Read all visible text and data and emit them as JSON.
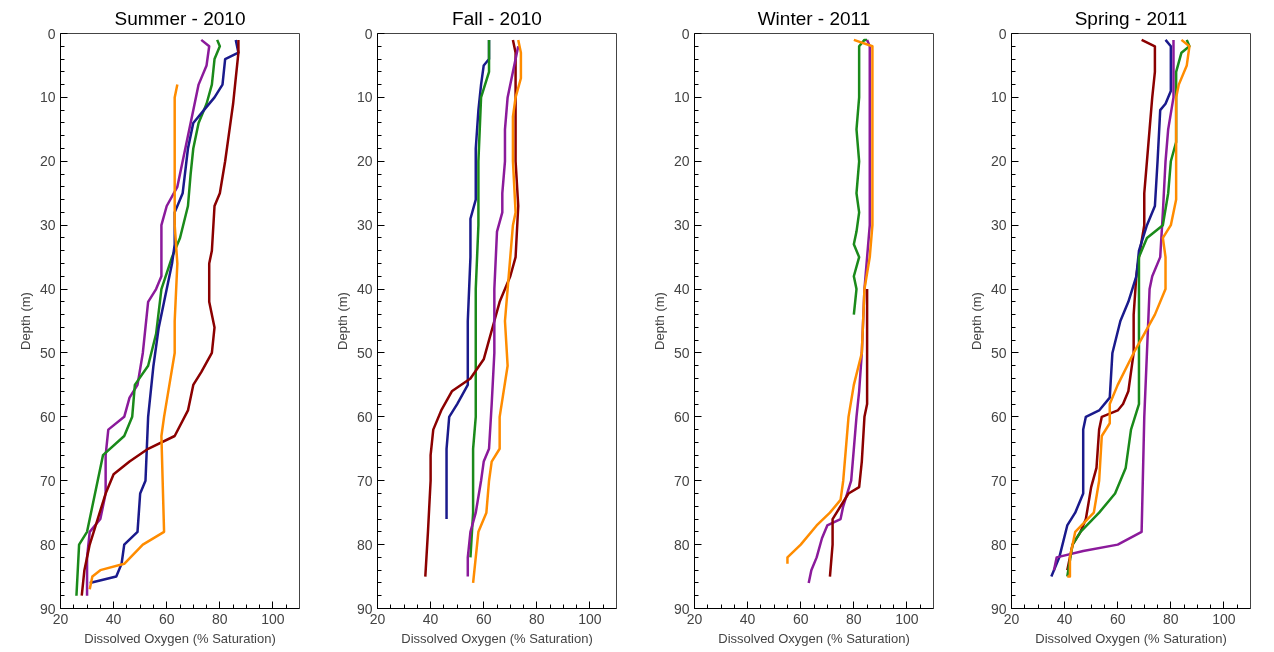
{
  "chart_data": [
    {
      "type": "line",
      "title": "Summer - 2010",
      "xlabel": "Dissolved Oxygen (% Saturation)",
      "ylabel": "Depth (m)",
      "xlim": [
        20,
        110
      ],
      "ylim": [
        90,
        0
      ],
      "xticks": [
        20,
        40,
        60,
        80,
        100,
        {
          "value": 25,
          "label": null
        },
        {
          "value": 30,
          "label": null
        },
        {
          "value": 35,
          "label": null
        },
        {
          "value": 45,
          "label": null
        },
        {
          "value": 50,
          "label": null
        },
        {
          "value": 55,
          "label": null
        },
        {
          "value": 65,
          "label": null
        },
        {
          "value": 70,
          "label": null
        },
        {
          "value": 75,
          "label": null
        },
        {
          "value": 85,
          "label": null
        },
        {
          "value": 90,
          "label": null
        },
        {
          "value": 95,
          "label": null
        },
        {
          "value": 105,
          "label": null
        }
      ],
      "yticks": [
        0,
        10,
        20,
        30,
        40,
        50,
        60,
        70,
        80,
        90,
        {
          "value": 2,
          "label": null
        },
        {
          "value": 4,
          "label": null
        },
        {
          "value": 6,
          "label": null
        },
        {
          "value": 8,
          "label": null
        },
        {
          "value": 12,
          "label": null
        },
        {
          "value": 14,
          "label": null
        },
        {
          "value": 16,
          "label": null
        },
        {
          "value": 18,
          "label": null
        },
        {
          "value": 22,
          "label": null
        },
        {
          "value": 24,
          "label": null
        },
        {
          "value": 26,
          "label": null
        },
        {
          "value": 28,
          "label": null
        },
        {
          "value": 32,
          "label": null
        },
        {
          "value": 34,
          "label": null
        },
        {
          "value": 36,
          "label": null
        },
        {
          "value": 38,
          "label": null
        },
        {
          "value": 42,
          "label": null
        },
        {
          "value": 44,
          "label": null
        },
        {
          "value": 46,
          "label": null
        },
        {
          "value": 48,
          "label": null
        },
        {
          "value": 52,
          "label": null
        },
        {
          "value": 54,
          "label": null
        },
        {
          "value": 56,
          "label": null
        },
        {
          "value": 58,
          "label": null
        },
        {
          "value": 62,
          "label": null
        },
        {
          "value": 64,
          "label": null
        },
        {
          "value": 66,
          "label": null
        },
        {
          "value": 68,
          "label": null
        },
        {
          "value": 72,
          "label": null
        },
        {
          "value": 74,
          "label": null
        },
        {
          "value": 76,
          "label": null
        },
        {
          "value": 78,
          "label": null
        },
        {
          "value": 82,
          "label": null
        },
        {
          "value": 84,
          "label": null
        },
        {
          "value": 86,
          "label": null
        },
        {
          "value": 88,
          "label": null
        }
      ],
      "grid": false,
      "marker": "none",
      "line_style": "solid",
      "series": [
        {
          "color": "#8b1a9b",
          "x": [
            73,
            76,
            75,
            72,
            70,
            68,
            66,
            64,
            60,
            58,
            58,
            56,
            53,
            51,
            49,
            46,
            44,
            38,
            37,
            37,
            35,
            31,
            30,
            30
          ],
          "values": [
            1,
            2,
            5,
            8,
            12,
            16,
            20,
            24,
            27,
            30,
            38,
            40,
            42,
            50,
            55,
            57,
            60,
            62,
            66,
            72,
            76,
            78,
            82,
            88
          ]
        },
        {
          "color": "#1a8a1a",
          "x": [
            79,
            80,
            78,
            77,
            75,
            72,
            70,
            69,
            68,
            65,
            62,
            58,
            56,
            53,
            48,
            47,
            44,
            36,
            34,
            32,
            30,
            27,
            26
          ],
          "values": [
            1,
            2,
            4,
            8,
            11,
            14,
            18,
            22,
            27,
            32,
            35,
            40,
            47,
            52,
            55,
            60,
            63,
            66,
            70,
            74,
            78,
            80,
            88
          ]
        },
        {
          "color": "#1a1a8c",
          "x": [
            86,
            87,
            82,
            81,
            78,
            74,
            70,
            68,
            66,
            63,
            63,
            62,
            60,
            57,
            55,
            53,
            52,
            50,
            49,
            44,
            43,
            41,
            31
          ],
          "values": [
            1,
            3,
            4,
            8,
            10,
            12,
            14,
            18,
            25,
            28,
            33,
            36,
            40,
            46,
            52,
            60,
            70,
            72,
            78,
            80,
            83,
            85,
            86
          ]
        },
        {
          "color": "#8b0000",
          "x": [
            87,
            87,
            86,
            85,
            84,
            82,
            80,
            78,
            77,
            76,
            76,
            78,
            77,
            73,
            70,
            68,
            63,
            53,
            46,
            40,
            37,
            34,
            31,
            29,
            28
          ],
          "values": [
            1,
            3,
            7,
            11,
            14,
            20,
            25,
            27,
            34,
            36,
            42,
            46,
            50,
            53,
            55,
            59,
            63,
            65,
            67,
            69,
            72,
            76,
            80,
            84,
            88
          ]
        },
        {
          "color": "#ff8c00",
          "x": [
            64,
            63,
            63,
            63,
            64,
            63,
            63,
            61,
            59,
            58,
            59,
            51,
            44,
            35,
            32,
            31
          ],
          "values": [
            8,
            10,
            20,
            30,
            36,
            45,
            50,
            55,
            60,
            63,
            78,
            80,
            83,
            84,
            85,
            87
          ]
        }
      ]
    },
    {
      "type": "line",
      "title": "Fall - 2010",
      "xlabel": "Dissolved Oxygen (% Saturation)",
      "ylabel": "Depth (m)",
      "xlim": [
        20,
        110
      ],
      "ylim": [
        90,
        0
      ],
      "xticks": [
        20,
        40,
        60,
        80,
        100,
        {
          "value": 25,
          "label": null
        },
        {
          "value": 30,
          "label": null
        },
        {
          "value": 35,
          "label": null
        },
        {
          "value": 45,
          "label": null
        },
        {
          "value": 50,
          "label": null
        },
        {
          "value": 55,
          "label": null
        },
        {
          "value": 65,
          "label": null
        },
        {
          "value": 70,
          "label": null
        },
        {
          "value": 75,
          "label": null
        },
        {
          "value": 85,
          "label": null
        },
        {
          "value": 90,
          "label": null
        },
        {
          "value": 95,
          "label": null
        },
        {
          "value": 105,
          "label": null
        }
      ],
      "yticks": [
        0,
        10,
        20,
        30,
        40,
        50,
        60,
        70,
        80,
        90,
        {
          "value": 2,
          "label": null
        },
        {
          "value": 4,
          "label": null
        },
        {
          "value": 6,
          "label": null
        },
        {
          "value": 8,
          "label": null
        },
        {
          "value": 12,
          "label": null
        },
        {
          "value": 14,
          "label": null
        },
        {
          "value": 16,
          "label": null
        },
        {
          "value": 18,
          "label": null
        },
        {
          "value": 22,
          "label": null
        },
        {
          "value": 24,
          "label": null
        },
        {
          "value": 26,
          "label": null
        },
        {
          "value": 28,
          "label": null
        },
        {
          "value": 32,
          "label": null
        },
        {
          "value": 34,
          "label": null
        },
        {
          "value": 36,
          "label": null
        },
        {
          "value": 38,
          "label": null
        },
        {
          "value": 42,
          "label": null
        },
        {
          "value": 44,
          "label": null
        },
        {
          "value": 46,
          "label": null
        },
        {
          "value": 48,
          "label": null
        },
        {
          "value": 52,
          "label": null
        },
        {
          "value": 54,
          "label": null
        },
        {
          "value": 56,
          "label": null
        },
        {
          "value": 58,
          "label": null
        },
        {
          "value": 62,
          "label": null
        },
        {
          "value": 64,
          "label": null
        },
        {
          "value": 66,
          "label": null
        },
        {
          "value": 68,
          "label": null
        },
        {
          "value": 72,
          "label": null
        },
        {
          "value": 74,
          "label": null
        },
        {
          "value": 76,
          "label": null
        },
        {
          "value": 78,
          "label": null
        },
        {
          "value": 82,
          "label": null
        },
        {
          "value": 84,
          "label": null
        },
        {
          "value": 86,
          "label": null
        },
        {
          "value": 88,
          "label": null
        }
      ],
      "grid": false,
      "marker": "none",
      "line_style": "solid",
      "series": [
        {
          "color": "#1a1a8c",
          "x": [
            62,
            62,
            60,
            59,
            58,
            57,
            57,
            55,
            55,
            54,
            54,
            54,
            50,
            47,
            46,
            46
          ],
          "values": [
            1,
            4,
            5,
            8,
            12,
            18,
            26,
            29,
            35,
            45,
            50,
            55,
            58,
            60,
            65,
            76
          ]
        },
        {
          "color": "#1a8a1a",
          "x": [
            62,
            62,
            59,
            58,
            58,
            57,
            57,
            57,
            56,
            56,
            55
          ],
          "values": [
            1,
            6,
            10,
            20,
            30,
            40,
            50,
            60,
            65,
            75,
            82
          ]
        },
        {
          "color": "#8b0000",
          "x": [
            71,
            72,
            72,
            72,
            73,
            72,
            70,
            66,
            64,
            62,
            60,
            55,
            48,
            44,
            41,
            40,
            40,
            39,
            38
          ],
          "values": [
            1,
            3,
            10,
            20,
            27,
            35,
            38,
            42,
            45,
            48,
            51,
            54,
            56,
            59,
            62,
            66,
            70,
            78,
            85
          ]
        },
        {
          "color": "#8b1a9b",
          "x": [
            73,
            71,
            69,
            68,
            68,
            67,
            67,
            65,
            64,
            64,
            63,
            62,
            60,
            59,
            57,
            55,
            54,
            54
          ],
          "values": [
            2,
            6,
            10,
            15,
            20,
            25,
            28,
            31,
            40,
            50,
            58,
            65,
            67,
            70,
            75,
            78,
            82,
            85
          ]
        },
        {
          "color": "#ff8c00",
          "x": [
            73,
            74,
            74,
            72,
            71,
            71,
            72,
            71,
            70,
            69,
            68,
            69,
            66,
            66,
            63,
            62,
            61,
            58,
            57,
            56
          ],
          "values": [
            1,
            3,
            7,
            10,
            13,
            20,
            28,
            30,
            35,
            40,
            45,
            52,
            60,
            65,
            67,
            70,
            75,
            78,
            82,
            86
          ]
        }
      ]
    },
    {
      "type": "line",
      "title": "Winter - 2011",
      "xlabel": "Dissolved Oxygen (% Saturation)",
      "ylabel": "Depth (m)",
      "xlim": [
        20,
        110
      ],
      "ylim": [
        90,
        0
      ],
      "xticks": [
        20,
        40,
        60,
        80,
        100,
        {
          "value": 25,
          "label": null
        },
        {
          "value": 30,
          "label": null
        },
        {
          "value": 35,
          "label": null
        },
        {
          "value": 45,
          "label": null
        },
        {
          "value": 50,
          "label": null
        },
        {
          "value": 55,
          "label": null
        },
        {
          "value": 65,
          "label": null
        },
        {
          "value": 70,
          "label": null
        },
        {
          "value": 75,
          "label": null
        },
        {
          "value": 85,
          "label": null
        },
        {
          "value": 90,
          "label": null
        },
        {
          "value": 95,
          "label": null
        },
        {
          "value": 105,
          "label": null
        }
      ],
      "yticks": [
        0,
        10,
        20,
        30,
        40,
        50,
        60,
        70,
        80,
        90,
        {
          "value": 2,
          "label": null
        },
        {
          "value": 4,
          "label": null
        },
        {
          "value": 6,
          "label": null
        },
        {
          "value": 8,
          "label": null
        },
        {
          "value": 12,
          "label": null
        },
        {
          "value": 14,
          "label": null
        },
        {
          "value": 16,
          "label": null
        },
        {
          "value": 18,
          "label": null
        },
        {
          "value": 22,
          "label": null
        },
        {
          "value": 24,
          "label": null
        },
        {
          "value": 26,
          "label": null
        },
        {
          "value": 28,
          "label": null
        },
        {
          "value": 32,
          "label": null
        },
        {
          "value": 34,
          "label": null
        },
        {
          "value": 36,
          "label": null
        },
        {
          "value": 38,
          "label": null
        },
        {
          "value": 42,
          "label": null
        },
        {
          "value": 44,
          "label": null
        },
        {
          "value": 46,
          "label": null
        },
        {
          "value": 48,
          "label": null
        },
        {
          "value": 52,
          "label": null
        },
        {
          "value": 54,
          "label": null
        },
        {
          "value": 56,
          "label": null
        },
        {
          "value": 58,
          "label": null
        },
        {
          "value": 62,
          "label": null
        },
        {
          "value": 64,
          "label": null
        },
        {
          "value": 66,
          "label": null
        },
        {
          "value": 68,
          "label": null
        },
        {
          "value": 72,
          "label": null
        },
        {
          "value": 74,
          "label": null
        },
        {
          "value": 76,
          "label": null
        },
        {
          "value": 78,
          "label": null
        },
        {
          "value": 82,
          "label": null
        },
        {
          "value": 84,
          "label": null
        },
        {
          "value": 86,
          "label": null
        },
        {
          "value": 88,
          "label": null
        }
      ],
      "grid": false,
      "marker": "none",
      "line_style": "solid",
      "series": [
        {
          "color": "#1a8a1a",
          "x": [
            85,
            84,
            82,
            82,
            81,
            82,
            81,
            82,
            81,
            80,
            82,
            80,
            81,
            80
          ],
          "values": [
            1,
            1,
            2,
            10,
            15,
            20,
            25,
            28,
            31,
            33,
            35,
            38,
            40,
            44
          ]
        },
        {
          "color": "#8b1a9b",
          "x": [
            85,
            86,
            86,
            86,
            86,
            85,
            84,
            83,
            82,
            81,
            80,
            79,
            76,
            75,
            70,
            68,
            66,
            64,
            63
          ],
          "values": [
            1,
            2,
            10,
            20,
            30,
            35,
            40,
            50,
            56,
            60,
            65,
            70,
            74,
            76,
            77,
            79,
            82,
            84,
            86
          ]
        },
        {
          "color": "#8b0000",
          "x": [
            85,
            85,
            85,
            84,
            83,
            82,
            78,
            75,
            72,
            72,
            71
          ],
          "values": [
            40,
            50,
            58,
            60,
            67,
            71,
            72,
            74,
            76,
            80,
            85
          ]
        },
        {
          "color": "#ff8c00",
          "x": [
            80,
            87,
            87,
            87,
            87,
            86,
            84,
            83,
            80,
            78,
            77,
            76,
            75,
            71,
            66,
            60,
            55,
            55
          ],
          "values": [
            1,
            2,
            10,
            20,
            30,
            35,
            40,
            50,
            55,
            60,
            65,
            70,
            73,
            75,
            77,
            80,
            82,
            83
          ]
        }
      ]
    },
    {
      "type": "line",
      "title": "Spring - 2011",
      "xlabel": "Dissolved Oxygen (% Saturation)",
      "ylabel": "Depth (m)",
      "xlim": [
        20,
        110
      ],
      "ylim": [
        90,
        0
      ],
      "xticks": [
        20,
        40,
        60,
        80,
        100,
        {
          "value": 25,
          "label": null
        },
        {
          "value": 30,
          "label": null
        },
        {
          "value": 35,
          "label": null
        },
        {
          "value": 45,
          "label": null
        },
        {
          "value": 50,
          "label": null
        },
        {
          "value": 55,
          "label": null
        },
        {
          "value": 65,
          "label": null
        },
        {
          "value": 70,
          "label": null
        },
        {
          "value": 75,
          "label": null
        },
        {
          "value": 85,
          "label": null
        },
        {
          "value": 90,
          "label": null
        },
        {
          "value": 95,
          "label": null
        },
        {
          "value": 105,
          "label": null
        }
      ],
      "yticks": [
        0,
        10,
        20,
        30,
        40,
        50,
        60,
        70,
        80,
        90,
        {
          "value": 2,
          "label": null
        },
        {
          "value": 4,
          "label": null
        },
        {
          "value": 6,
          "label": null
        },
        {
          "value": 8,
          "label": null
        },
        {
          "value": 12,
          "label": null
        },
        {
          "value": 14,
          "label": null
        },
        {
          "value": 16,
          "label": null
        },
        {
          "value": 18,
          "label": null
        },
        {
          "value": 22,
          "label": null
        },
        {
          "value": 24,
          "label": null
        },
        {
          "value": 26,
          "label": null
        },
        {
          "value": 28,
          "label": null
        },
        {
          "value": 32,
          "label": null
        },
        {
          "value": 34,
          "label": null
        },
        {
          "value": 36,
          "label": null
        },
        {
          "value": 38,
          "label": null
        },
        {
          "value": 42,
          "label": null
        },
        {
          "value": 44,
          "label": null
        },
        {
          "value": 46,
          "label": null
        },
        {
          "value": 48,
          "label": null
        },
        {
          "value": 52,
          "label": null
        },
        {
          "value": 54,
          "label": null
        },
        {
          "value": 56,
          "label": null
        },
        {
          "value": 58,
          "label": null
        },
        {
          "value": 62,
          "label": null
        },
        {
          "value": 64,
          "label": null
        },
        {
          "value": 66,
          "label": null
        },
        {
          "value": 68,
          "label": null
        },
        {
          "value": 72,
          "label": null
        },
        {
          "value": 74,
          "label": null
        },
        {
          "value": 76,
          "label": null
        },
        {
          "value": 78,
          "label": null
        },
        {
          "value": 82,
          "label": null
        },
        {
          "value": 84,
          "label": null
        },
        {
          "value": 86,
          "label": null
        },
        {
          "value": 88,
          "label": null
        }
      ],
      "grid": false,
      "marker": "none",
      "line_style": "solid",
      "series": [
        {
          "color": "#8b0000",
          "x": [
            69,
            74,
            74,
            73,
            72,
            71,
            70,
            70,
            68,
            67,
            66,
            66,
            64,
            62,
            60,
            54,
            53,
            52,
            50,
            48,
            46,
            43,
            41
          ],
          "values": [
            1,
            2,
            6,
            10,
            15,
            20,
            25,
            30,
            35,
            38,
            44,
            50,
            56,
            58,
            59,
            60,
            62,
            68,
            71,
            76,
            78,
            80,
            84
          ]
        },
        {
          "color": "#1a1a8c",
          "x": [
            78,
            80,
            80,
            78,
            76,
            75,
            74,
            71,
            68,
            67,
            64,
            61,
            58,
            57,
            53,
            48,
            47,
            47,
            44,
            41,
            38,
            35
          ],
          "values": [
            1,
            2,
            9,
            11,
            12,
            20,
            27,
            30,
            34,
            38,
            42,
            45,
            50,
            57,
            59,
            60,
            62,
            72,
            75,
            77,
            82,
            85
          ]
        },
        {
          "color": "#8b1a9b",
          "x": [
            81,
            81,
            79,
            78,
            77,
            76,
            73,
            72,
            71,
            70,
            69,
            60,
            47,
            37,
            36
          ],
          "values": [
            1,
            10,
            15,
            20,
            28,
            35,
            38,
            40,
            50,
            60,
            78,
            80,
            81,
            82,
            84
          ]
        },
        {
          "color": "#1a8a1a",
          "x": [
            86,
            87,
            84,
            82,
            82,
            80,
            79,
            77,
            71,
            68,
            68,
            68,
            65,
            63,
            59,
            53,
            46,
            43,
            41
          ],
          "values": [
            1,
            2,
            3,
            6,
            17,
            20,
            25,
            30,
            32,
            35,
            45,
            58,
            62,
            68,
            72,
            75,
            78,
            80,
            85
          ]
        },
        {
          "color": "#ff8c00",
          "x": [
            84,
            87,
            86,
            83,
            82,
            82,
            80,
            77,
            78,
            78,
            74,
            70,
            66,
            60,
            57,
            57,
            54,
            53,
            51,
            44,
            42,
            42,
            41
          ],
          "values": [
            1,
            2,
            5,
            8,
            10,
            26,
            30,
            32,
            35,
            40,
            44,
            47,
            50,
            55,
            58,
            61,
            63,
            70,
            75,
            78,
            82,
            85,
            85
          ]
        }
      ]
    }
  ]
}
